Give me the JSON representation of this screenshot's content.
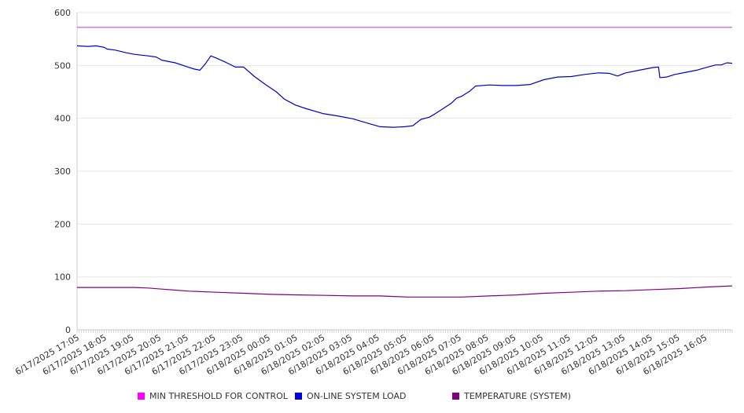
{
  "chart_data": {
    "type": "line",
    "title": "",
    "xlabel": "",
    "ylabel": "",
    "ylim": [
      0,
      600
    ],
    "yticks": [
      0,
      100,
      200,
      300,
      400,
      500,
      600
    ],
    "grid": true,
    "legend_position": "bottom",
    "x_tick_labels": [
      "6/17/2025 17:05",
      "6/17/2025 18:05",
      "6/17/2025 19:05",
      "6/17/2025 20:05",
      "6/17/2025 21:05",
      "6/17/2025 22:05",
      "6/17/2025 23:05",
      "6/18/2025 00:05",
      "6/18/2025 01:05",
      "6/18/2025 02:05",
      "6/18/2025 03:05",
      "6/18/2025 04:05",
      "6/18/2025 05:05",
      "6/18/2025 06:05",
      "6/18/2025 07:05",
      "6/18/2025 08:05",
      "6/18/2025 09:05",
      "6/18/2025 10:05",
      "6/18/2025 11:05",
      "6/18/2025 12:05",
      "6/18/2025 13:05",
      "6/18/2025 14:05",
      "6/18/2025 15:05",
      "6/18/2025 16:05"
    ],
    "x_hours": [
      0,
      1,
      2,
      3,
      4,
      5,
      6,
      7,
      8,
      9,
      10,
      11,
      12,
      13,
      14,
      15,
      16,
      17,
      18,
      19,
      20,
      21,
      22,
      23
    ],
    "series": [
      {
        "name": "MIN THRESHOLD FOR CONTROL",
        "color": "#cc33cc",
        "x": [
          -0.1,
          23.9
        ],
        "y": [
          572,
          572
        ]
      },
      {
        "name": "ON-LINE SYSTEM LOAD",
        "color": "#0000cc",
        "x": [
          -0.1,
          0.3,
          0.6,
          0.9,
          1.0,
          1.3,
          1.7,
          2.0,
          2.5,
          2.8,
          3.0,
          3.5,
          3.9,
          4.2,
          4.4,
          4.6,
          4.8,
          5.0,
          5.3,
          5.5,
          5.7,
          6.0,
          6.4,
          6.8,
          7.2,
          7.5,
          7.9,
          8.3,
          8.9,
          9.5,
          10.0,
          10.6,
          11.0,
          11.5,
          11.9,
          12.2,
          12.5,
          12.8,
          13.0,
          13.3,
          13.6,
          13.8,
          14.0,
          14.3,
          14.5,
          15.0,
          15.5,
          16.0,
          16.5,
          17.0,
          17.5,
          18.0,
          18.5,
          19.0,
          19.4,
          19.7,
          20.0,
          20.5,
          21.0,
          21.2,
          21.25,
          21.5,
          21.8,
          22.2,
          22.6,
          23.0,
          23.3,
          23.5,
          23.7,
          23.9
        ],
        "y": [
          537,
          536,
          537,
          534,
          531,
          529,
          524,
          521,
          518,
          516,
          510,
          505,
          498,
          493,
          491,
          503,
          518,
          514,
          507,
          502,
          497,
          497,
          479,
          464,
          450,
          436,
          425,
          418,
          409,
          404,
          399,
          390,
          384,
          383,
          384,
          386,
          398,
          402,
          408,
          418,
          428,
          438,
          442,
          452,
          461,
          463,
          462,
          462,
          464,
          473,
          478,
          479,
          483,
          486,
          485,
          480,
          486,
          491,
          496,
          497,
          477,
          478,
          483,
          487,
          491,
          497,
          501,
          501,
          505,
          504
        ]
      },
      {
        "name": "TEMPERATURE (SYSTEM)",
        "color": "#800080",
        "x": [
          -0.1,
          1.0,
          2.0,
          2.5,
          3.0,
          3.5,
          4.0,
          5.0,
          6.0,
          7.0,
          8.0,
          9.0,
          10.0,
          11.0,
          11.5,
          12.0,
          13.0,
          14.0,
          15.0,
          16.0,
          17.0,
          18.0,
          19.0,
          20.0,
          21.0,
          22.0,
          23.0,
          23.9
        ],
        "y": [
          80,
          80,
          80,
          79,
          77,
          75,
          73,
          71,
          69,
          67,
          66,
          65,
          64,
          64,
          63,
          62,
          62,
          62,
          64,
          66,
          69,
          71,
          73,
          74,
          76,
          78,
          81,
          83
        ]
      }
    ]
  }
}
